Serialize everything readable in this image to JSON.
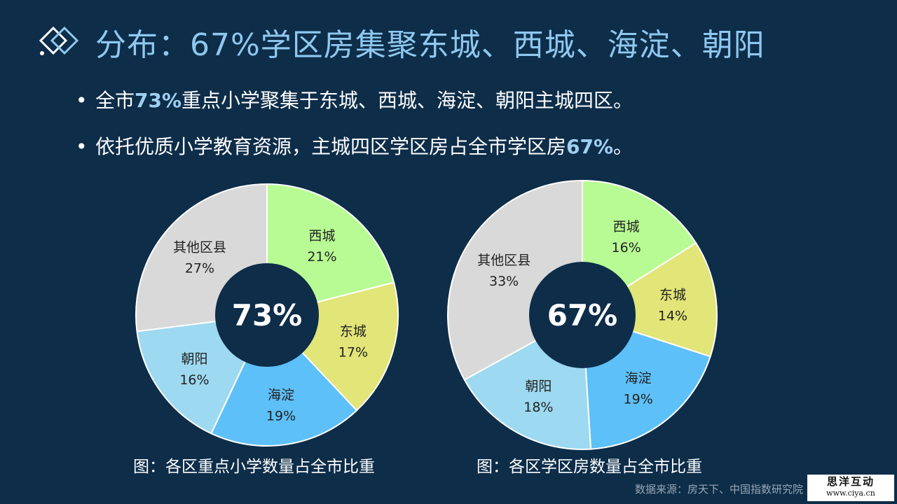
{
  "title": "分布：67%学区房集聚东城、西城、海淀、朝阳",
  "bullets": [
    {
      "pre": "全市",
      "highlight": "73%",
      "post": "重点小学聚集于东城、西城、海淀、朝阳主城四区。"
    },
    {
      "pre": "依托优质小学教育资源，主城四区学区房占全市学区房",
      "highlight": "67%",
      "post": "。"
    }
  ],
  "chart_data": [
    {
      "type": "pie",
      "title": "图：各区重点小学数量占全市比重",
      "center_label": "73%",
      "slices": [
        {
          "name": "西城",
          "value": 21,
          "label": "21%",
          "color": "#b8fb94"
        },
        {
          "name": "东城",
          "value": 17,
          "label": "17%",
          "color": "#e2e577"
        },
        {
          "name": "海淀",
          "value": 19,
          "label": "19%",
          "color": "#5ec0f8"
        },
        {
          "name": "朝阳",
          "value": 16,
          "label": "16%",
          "color": "#9dd9f0"
        },
        {
          "name": "其他区县",
          "value": 27,
          "label": "27%",
          "color": "#d9d9d9"
        }
      ]
    },
    {
      "type": "pie",
      "title": "图：各区学区房数量占全市比重",
      "center_label": "67%",
      "slices": [
        {
          "name": "西城",
          "value": 16,
          "label": "16%",
          "color": "#b8fb94"
        },
        {
          "name": "东城",
          "value": 14,
          "label": "14%",
          "color": "#e2e577"
        },
        {
          "name": "海淀",
          "value": 19,
          "label": "19%",
          "color": "#5ec0f8"
        },
        {
          "name": "朝阳",
          "value": 18,
          "label": "18%",
          "color": "#9dd9f0"
        },
        {
          "name": "其他区县",
          "value": 33,
          "label": "33%",
          "color": "#d9d9d9"
        }
      ]
    }
  ],
  "source": "数据来源：房天下、中国指数研究院",
  "watermark": {
    "line1": "思洋互动",
    "line2": "www.ciya.cn"
  },
  "colors": {
    "background": "#0d2d49",
    "title": "#8fc8ef",
    "highlight": "#9fd0f2"
  }
}
